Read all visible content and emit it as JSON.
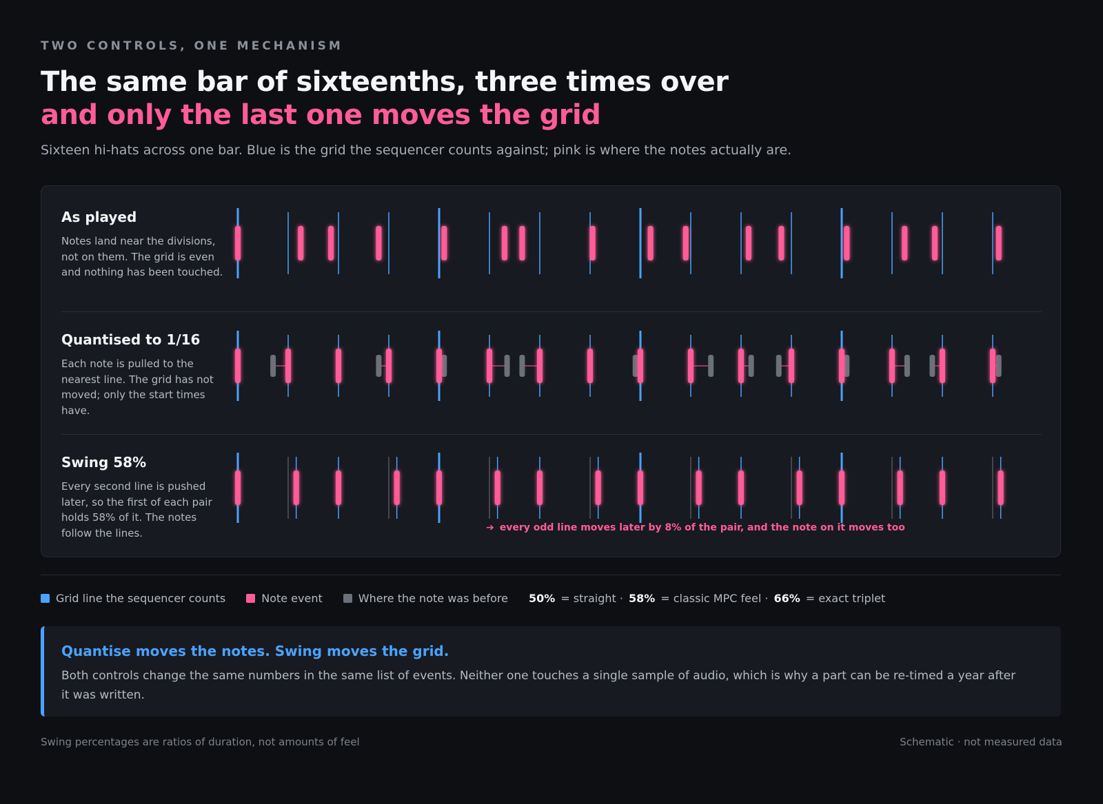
{
  "header": {
    "eyebrow": "TWO CONTROLS, ONE MECHANISM",
    "title_line1": "The same bar of sixteenths, three times over",
    "title_line2": "and only the last one moves the grid",
    "subtitle": "Sixteen hi-hats across one bar. Blue is the grid the sequencer counts against; pink is where the notes actually are."
  },
  "rows": [
    {
      "title": "As played",
      "description": "Notes land near the divisions, not on them. The grid is even and nothing has been touched."
    },
    {
      "title": "Quantised to 1/16",
      "description": "Each note is pulled to the nearest line. The grid has not moved; only the start times have."
    },
    {
      "title": "Swing 58%",
      "description": "Every second line is pushed later, so the first of each pair holds 58% of it. The notes follow the lines."
    }
  ],
  "swing_annotation": "every odd line moves later by 8% of the pair, and the note on it moves too",
  "legend": {
    "grid": "Grid line the sequencer counts",
    "note": "Note event",
    "before": "Where the note was before",
    "ratios": [
      {
        "value": "50%",
        "label": "= straight ·"
      },
      {
        "value": "58%",
        "label": "= classic MPC feel ·"
      },
      {
        "value": "66%",
        "label": "= exact triplet"
      }
    ]
  },
  "callout": {
    "title": "Quantise moves the notes. Swing moves the grid.",
    "body": "Both controls change the same numbers in the same list of events. Neither one touches a single sample of audio, which is why a part can be re-timed a year after it was written."
  },
  "footer": {
    "left": "Swing percentages are ratios of duration, not amounts of feel",
    "right": "Schematic · not measured data"
  },
  "colors": {
    "grid": "#4aa3ff",
    "note": "#ff5c98",
    "before": "#6b7079",
    "background": "#0d0f13",
    "panel": "#171a20"
  },
  "diagram": {
    "steps_per_bar": 16,
    "swing_ratio": 0.58,
    "played_offsets": [
      0,
      0.25,
      -0.15,
      -0.2,
      0.1,
      0.3,
      -0.35,
      0.05,
      0.2,
      -0.1,
      0.15,
      -0.2,
      0.1,
      0.25,
      -0.15,
      0.12
    ],
    "quantised_from": [
      0,
      -0.3,
      0,
      -0.2,
      0.1,
      0.35,
      -0.35,
      0,
      -0.1,
      0.4,
      0.2,
      -0.25,
      0.1,
      0.3,
      -0.2,
      0.12
    ]
  }
}
